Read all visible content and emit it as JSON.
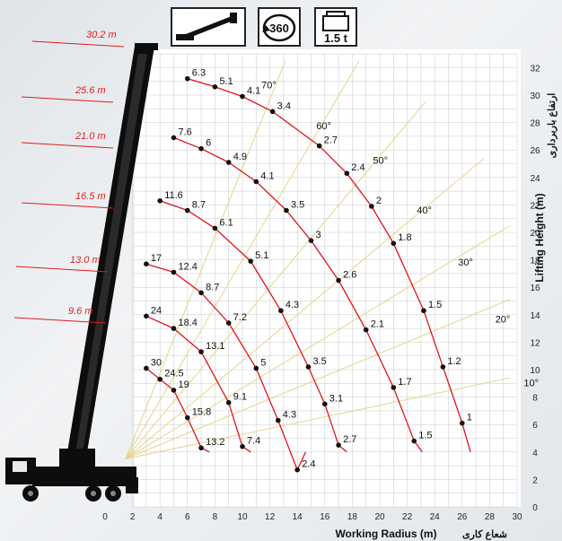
{
  "header_icons": {
    "rotation_label": "360",
    "capacity_label": "1.5 t"
  },
  "axes": {
    "x_title": "Working Radius (m)",
    "x_title_fa": "شعاع کاری",
    "y_title": "Lifting Height (m)",
    "y_title_fa": "ارتفاع باربرداری"
  },
  "chart_data": {
    "type": "scatter",
    "xlim": [
      0,
      30
    ],
    "ylim": [
      0,
      33
    ],
    "x_ticks": [
      0,
      2,
      4,
      6,
      8,
      10,
      12,
      14,
      16,
      18,
      20,
      22,
      24,
      26,
      28,
      30
    ],
    "y_ticks": [
      0,
      2,
      4,
      6,
      8,
      10,
      12,
      14,
      16,
      18,
      20,
      22,
      24,
      26,
      28,
      30,
      32
    ],
    "grid": true,
    "boom_lengths": [
      "30.2 m",
      "25.6 m",
      "21.0 m",
      "16.5 m",
      "13.0 m",
      "9.6 m"
    ],
    "angle_labels": [
      "70°",
      "60°",
      "50°",
      "40°",
      "30°",
      "20°",
      "10°"
    ],
    "series": [
      {
        "boom": "30.2 m",
        "points": [
          {
            "x": 6.0,
            "y": 31.2,
            "load": "6.3"
          },
          {
            "x": 8.0,
            "y": 30.6,
            "load": "5.1"
          },
          {
            "x": 10.0,
            "y": 29.9,
            "load": "4.1"
          },
          {
            "x": 12.2,
            "y": 28.8,
            "load": "3.4"
          },
          {
            "x": 15.6,
            "y": 26.3,
            "load": "2.7"
          },
          {
            "x": 17.6,
            "y": 24.3,
            "load": "2.4"
          },
          {
            "x": 19.4,
            "y": 21.9,
            "load": "2"
          },
          {
            "x": 21.0,
            "y": 19.2,
            "load": "1.8"
          },
          {
            "x": 23.2,
            "y": 14.3,
            "load": "1.5"
          },
          {
            "x": 24.6,
            "y": 10.2,
            "load": "1.2"
          },
          {
            "x": 26.0,
            "y": 6.1,
            "load": "1"
          }
        ]
      },
      {
        "boom": "25.6 m",
        "points": [
          {
            "x": 5.0,
            "y": 26.9,
            "load": "7.6"
          },
          {
            "x": 7.0,
            "y": 26.1,
            "load": "6"
          },
          {
            "x": 9.0,
            "y": 25.1,
            "load": "4.9"
          },
          {
            "x": 11.0,
            "y": 23.7,
            "load": "4.1"
          },
          {
            "x": 13.2,
            "y": 21.6,
            "load": "3.5"
          },
          {
            "x": 15.0,
            "y": 19.4,
            "load": "3"
          },
          {
            "x": 17.0,
            "y": 16.5,
            "load": "2.6"
          },
          {
            "x": 19.0,
            "y": 12.9,
            "load": "2.1"
          },
          {
            "x": 21.0,
            "y": 8.7,
            "load": "1.7"
          },
          {
            "x": 22.5,
            "y": 4.8,
            "load": "1.5"
          }
        ]
      },
      {
        "boom": "21.0 m",
        "points": [
          {
            "x": 4.0,
            "y": 22.3,
            "load": "11.6"
          },
          {
            "x": 6.0,
            "y": 21.6,
            "load": "8.7"
          },
          {
            "x": 8.0,
            "y": 20.3,
            "load": "6.1"
          },
          {
            "x": 10.6,
            "y": 17.9,
            "load": "5.1"
          },
          {
            "x": 12.8,
            "y": 14.3,
            "load": "4.3"
          },
          {
            "x": 14.8,
            "y": 10.2,
            "load": "3.5"
          },
          {
            "x": 16.0,
            "y": 7.5,
            "load": "3.1"
          },
          {
            "x": 17.0,
            "y": 4.5,
            "load": "2.7"
          }
        ]
      },
      {
        "boom": "16.5 m",
        "points": [
          {
            "x": 3.0,
            "y": 17.7,
            "load": "17"
          },
          {
            "x": 5.0,
            "y": 17.1,
            "load": "12.4"
          },
          {
            "x": 7.0,
            "y": 15.6,
            "load": "8.7"
          },
          {
            "x": 9.0,
            "y": 13.4,
            "load": "7.2"
          },
          {
            "x": 11.0,
            "y": 10.1,
            "load": "5"
          },
          {
            "x": 12.6,
            "y": 6.3,
            "load": "4.3"
          },
          {
            "x": 14.0,
            "y": 2.7,
            "load": "2.4"
          }
        ]
      },
      {
        "boom": "13.0 m",
        "points": [
          {
            "x": 3.0,
            "y": 13.9,
            "load": "24"
          },
          {
            "x": 5.0,
            "y": 13.0,
            "load": "18.4"
          },
          {
            "x": 7.0,
            "y": 11.3,
            "load": "13.1"
          },
          {
            "x": 9.0,
            "y": 7.6,
            "load": "9.1"
          },
          {
            "x": 10.0,
            "y": 4.4,
            "load": "7.4"
          }
        ]
      },
      {
        "boom": "9.6 m",
        "points": [
          {
            "x": 3.0,
            "y": 10.1,
            "load": "30"
          },
          {
            "x": 4.0,
            "y": 9.3,
            "load": "24.5"
          },
          {
            "x": 5.0,
            "y": 8.5,
            "load": "19"
          },
          {
            "x": 6.0,
            "y": 6.5,
            "load": "15.8"
          },
          {
            "x": 7.0,
            "y": 4.3,
            "load": "13.2"
          }
        ]
      }
    ]
  },
  "colors": {
    "curve": "#e0141c",
    "angle_line": "#e6d48a",
    "grid": "#c9c9c9",
    "boom_label": "#e21b1b",
    "point": "#111111"
  }
}
